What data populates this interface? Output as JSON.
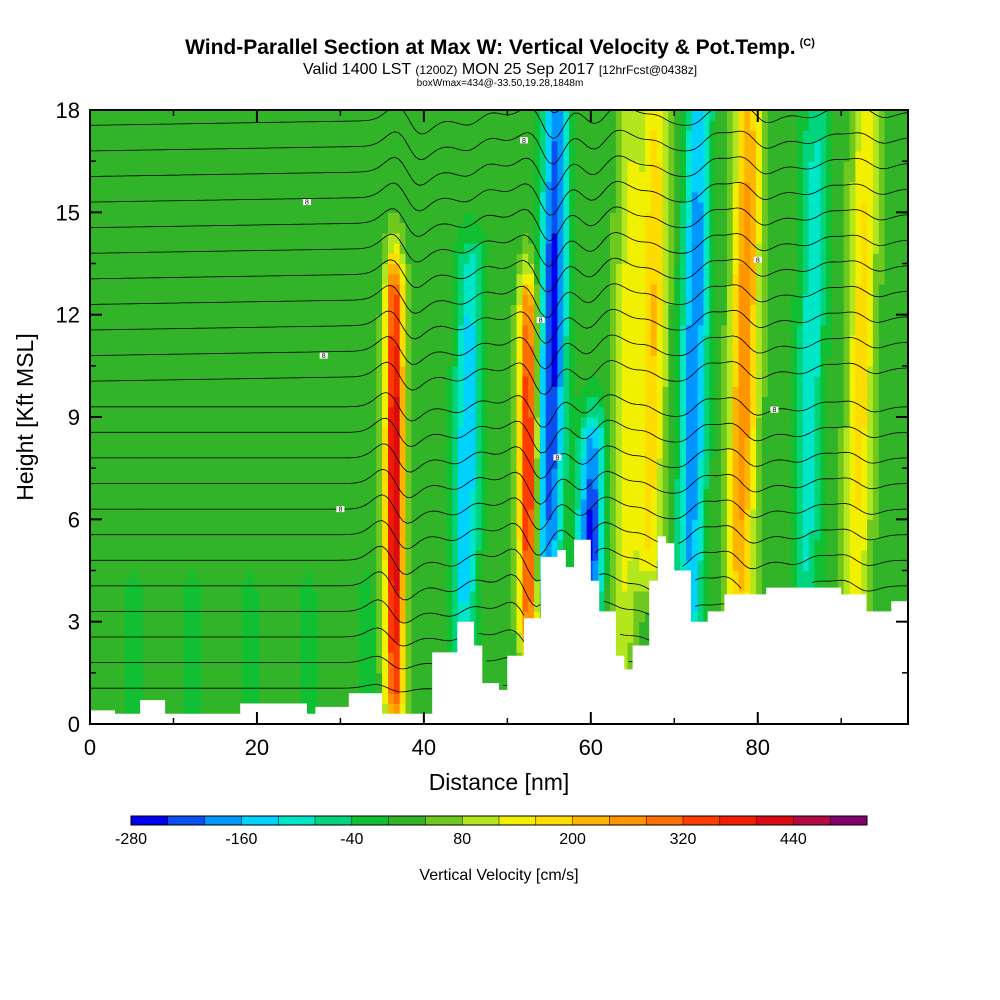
{
  "header": {
    "title": "Wind-Parallel Section at Max W: Vertical Velocity & Pot.Temp.",
    "copyright": "(C)",
    "valid_prefix": "Valid 1400 LST",
    "valid_utc": "(1200Z)",
    "valid_date": "MON 25 Sep 2017",
    "forecast": "[12hrFcst@0438z]",
    "box_info": "boxWmax=434@-33.50,19.28,1848m"
  },
  "chart_data": {
    "type": "heatmap",
    "xlabel": "Distance [nm]",
    "ylabel": "Height [Kft MSL]",
    "xlim": [
      0,
      98
    ],
    "ylim": [
      0,
      18
    ],
    "x_ticks": [
      "0",
      "20",
      "40",
      "60",
      "80"
    ],
    "y_ticks": [
      "0",
      "3",
      "6",
      "9",
      "12",
      "15",
      "18"
    ],
    "colorbar": {
      "label": "Vertical Velocity [cm/s]",
      "tick_labels": [
        "-280",
        "-160",
        "-40",
        "80",
        "200",
        "320",
        "440"
      ],
      "levels": [
        -280,
        -240,
        -200,
        -160,
        -120,
        -80,
        -40,
        0,
        40,
        80,
        120,
        160,
        200,
        240,
        280,
        320,
        360,
        400,
        440,
        480
      ],
      "colors": [
        "#0000f0",
        "#0a50f0",
        "#0096ff",
        "#00d2ff",
        "#00e6c8",
        "#00d47c",
        "#10c032",
        "#32b428",
        "#6ec81e",
        "#b4e61e",
        "#f0f000",
        "#ffdc00",
        "#ffb400",
        "#ff9600",
        "#ff6e00",
        "#ff3c00",
        "#f01e00",
        "#dc0a14",
        "#b40a46",
        "#82006e"
      ]
    },
    "max_vertical_velocity_cms": 434,
    "terrain_top_kft": [
      [
        0,
        0.4
      ],
      [
        3,
        0.3
      ],
      [
        6,
        0.7
      ],
      [
        9,
        0.3
      ],
      [
        18,
        0.6
      ],
      [
        24,
        0.6
      ],
      [
        26,
        0.3
      ],
      [
        27,
        0.5
      ],
      [
        31,
        0.9
      ],
      [
        35,
        0.3
      ],
      [
        40,
        0.3
      ],
      [
        41,
        2.1
      ],
      [
        44,
        3.0
      ],
      [
        46,
        2.3
      ],
      [
        47,
        1.2
      ],
      [
        49,
        1.0
      ],
      [
        50,
        2.0
      ],
      [
        52,
        3.1
      ],
      [
        54,
        4.9
      ],
      [
        56,
        5.1
      ],
      [
        57,
        4.6
      ],
      [
        58,
        5.4
      ],
      [
        60,
        4.2
      ],
      [
        61,
        3.3
      ],
      [
        63,
        2.0
      ],
      [
        64,
        1.6
      ],
      [
        65,
        2.3
      ],
      [
        67,
        4.2
      ],
      [
        68,
        5.5
      ],
      [
        69,
        5.3
      ],
      [
        70,
        4.5
      ],
      [
        72,
        3.0
      ],
      [
        74,
        3.3
      ],
      [
        76,
        3.8
      ],
      [
        79,
        3.8
      ],
      [
        81,
        4.0
      ],
      [
        90,
        3.8
      ],
      [
        93,
        3.3
      ],
      [
        96,
        3.6
      ],
      [
        98,
        3.6
      ]
    ],
    "velocity_bands": [
      {
        "x": 36.5,
        "z_bottom": 1.0,
        "z_top": 12.5,
        "w_cms": 434
      },
      {
        "x": 45.0,
        "z_bottom": 2.5,
        "z_top": 13.0,
        "w_cms": -180
      },
      {
        "x": 52.5,
        "z_bottom": 3.0,
        "z_top": 12.0,
        "w_cms": 380
      },
      {
        "x": 55.0,
        "z_bottom": 5.0,
        "z_top": 18.0,
        "w_cms": -280
      },
      {
        "x": 60.0,
        "z_bottom": 3.0,
        "z_top": 8.0,
        "w_cms": -270
      },
      {
        "x": 64.0,
        "z_bottom": 2.0,
        "z_top": 18.0,
        "w_cms": 120
      },
      {
        "x": 67.0,
        "z_bottom": 5.0,
        "z_top": 18.0,
        "w_cms": 180
      },
      {
        "x": 72.0,
        "z_bottom": 3.0,
        "z_top": 18.0,
        "w_cms": -220
      },
      {
        "x": 78.0,
        "z_bottom": 4.0,
        "z_top": 18.0,
        "w_cms": 260
      },
      {
        "x": 86.0,
        "z_bottom": 4.0,
        "z_top": 18.0,
        "w_cms": -130
      },
      {
        "x": 92.0,
        "z_bottom": 3.5,
        "z_top": 18.0,
        "w_cms": 160
      }
    ],
    "theta_isentrope_spacing_kft": 0.75,
    "isentrope_label": "8"
  }
}
